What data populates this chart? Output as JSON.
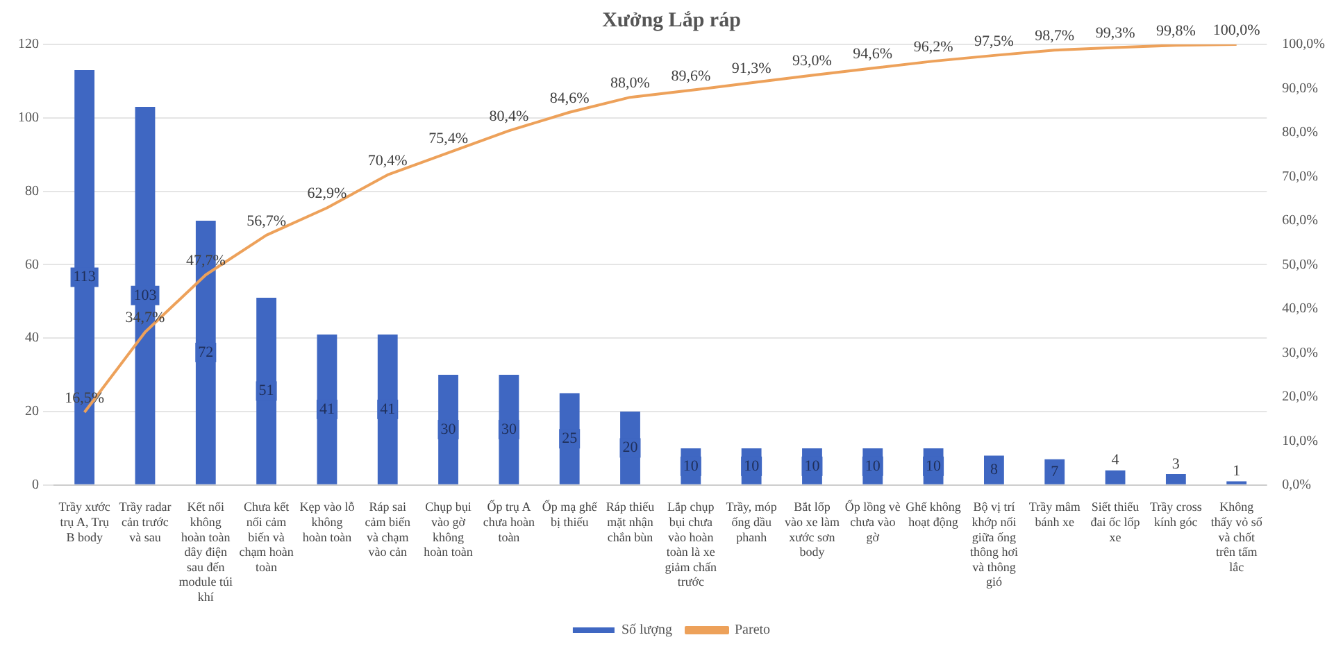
{
  "chart_data": {
    "type": "bar",
    "title": "Xưởng Lắp ráp",
    "categories": [
      "Trầy xước trụ A, Trụ B body",
      "Trầy radar cản trước và sau",
      "Kết nối không hoàn toàn dây điện sau đến module túi khí",
      "Chưa kết nối cảm biến và chạm hoàn toàn",
      "Kẹp vào lỗ không hoàn toàn",
      "Ráp sai cảm biến và chạm vào cản",
      "Chụp bụi vào gờ không hoàn toàn",
      "Ốp trụ A chưa hoàn toàn",
      "Ốp mạ ghế bị thiếu",
      "Ráp thiếu mặt nhận chắn bùn",
      "Lắp chụp bụi chưa vào hoàn toàn là xe giảm chấn trước",
      "Trầy, móp ống dầu phanh",
      "Bắt lốp vào xe làm xước sơn body",
      "Ốp lồng vè chưa vào gờ",
      "Ghế không hoạt động",
      "Bộ vị trí khớp nối giữa ống thông hơi và thông gió",
      "Trầy mâm bánh xe",
      "Siết thiếu đai ốc lốp xe",
      "Trầy cross kính góc",
      "Không thấy vỏ số và chốt trên tấm lắc"
    ],
    "series": [
      {
        "name": "Số lượng",
        "color": "#3f67c2",
        "values": [
          113,
          103,
          72,
          51,
          41,
          41,
          30,
          30,
          25,
          20,
          10,
          10,
          10,
          10,
          10,
          8,
          7,
          4,
          3,
          1
        ],
        "value_labels": [
          "113",
          "103",
          "72",
          "51",
          "41",
          "41",
          "30",
          "30",
          "25",
          "20",
          "10",
          "10",
          "10",
          "10",
          "10",
          "8",
          "7",
          "4",
          "3",
          "1"
        ]
      },
      {
        "name": "Pareto",
        "type": "line",
        "axis": "y2",
        "color": "#eda15a",
        "values": [
          16.5,
          34.7,
          47.7,
          56.7,
          62.9,
          70.4,
          75.4,
          80.4,
          84.6,
          88.0,
          89.6,
          91.3,
          93.0,
          94.6,
          96.2,
          97.5,
          98.7,
          99.3,
          99.8,
          100.0
        ],
        "value_labels": [
          "16,5%",
          "34,7%",
          "47,7%",
          "56,7%",
          "62,9%",
          "70,4%",
          "75,4%",
          "80,4%",
          "84,6%",
          "88,0%",
          "89,6%",
          "91,3%",
          "93,0%",
          "94,6%",
          "96,2%",
          "97,5%",
          "98,7%",
          "99,3%",
          "99,8%",
          "100,0%"
        ]
      }
    ],
    "ylim": [
      0,
      120
    ],
    "yticks": [
      0,
      20,
      40,
      60,
      80,
      100,
      120
    ],
    "y2lim": [
      0,
      100
    ],
    "y2ticks": [
      {
        "value": 0,
        "label": "0,0%"
      },
      {
        "value": 10,
        "label": "10,0%"
      },
      {
        "value": 20,
        "label": "20,0%"
      },
      {
        "value": 30,
        "label": "30,0%"
      },
      {
        "value": 40,
        "label": "40,0%"
      },
      {
        "value": 50,
        "label": "50,0%"
      },
      {
        "value": 60,
        "label": "60,0%"
      },
      {
        "value": 70,
        "label": "70,0%"
      },
      {
        "value": 80,
        "label": "80,0%"
      },
      {
        "value": 90,
        "label": "90,0%"
      },
      {
        "value": 100,
        "label": "100,0%"
      }
    ],
    "grid": "y",
    "legend": "bottom",
    "line_style": "solid"
  }
}
